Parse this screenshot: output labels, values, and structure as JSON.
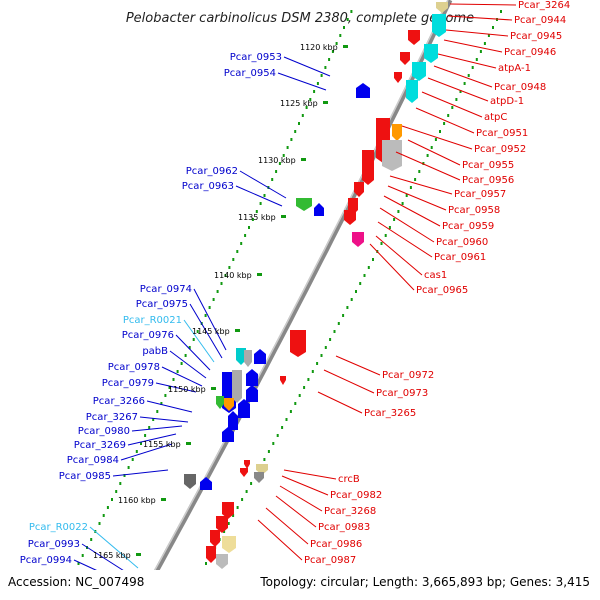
{
  "title": "Pelobacter carbinolicus DSM 2380, complete genome",
  "footer": {
    "accession": "Accession: NC_007498",
    "topology": "Topology: circular; Length: 3,665,893 bp; Genes: 3,415"
  },
  "colors": {
    "rightLabel": "#e00000",
    "leftLabel": "#0000cc",
    "rnaLabel": "#33bbee",
    "tick": "#119911",
    "backbone": "#888888"
  },
  "kbp_ticks": [
    "1120 kbp",
    "1125 kbp",
    "1130 kbp",
    "1135 kbp",
    "1140 kbp",
    "1145 kbp",
    "1150 kbp",
    "1155 kbp",
    "1160 kbp",
    "1165 kbp"
  ],
  "left_genes": [
    "Pcar_0953",
    "Pcar_0954",
    "Pcar_0962",
    "Pcar_0963",
    "Pcar_0974",
    "Pcar_0975",
    "Pcar_R0021",
    "Pcar_0976",
    "pabB",
    "Pcar_0978",
    "Pcar_0979",
    "Pcar_3266",
    "Pcar_3267",
    "Pcar_0980",
    "Pcar_3269",
    "Pcar_0984",
    "Pcar_0985",
    "Pcar_R0022",
    "Pcar_0993",
    "Pcar_0994"
  ],
  "right_genes": [
    "Pcar_3264",
    "Pcar_0944",
    "Pcar_0945",
    "Pcar_0946",
    "atpA-1",
    "Pcar_0948",
    "atpD-1",
    "atpC",
    "Pcar_0951",
    "Pcar_0952",
    "Pcar_0955",
    "Pcar_0956",
    "Pcar_0957",
    "Pcar_0958",
    "Pcar_0959",
    "Pcar_0960",
    "Pcar_0961",
    "cas1",
    "Pcar_0965",
    "Pcar_0972",
    "Pcar_0973",
    "Pcar_3265",
    "crcB",
    "Pcar_0982",
    "Pcar_3268",
    "Pcar_0983",
    "Pcar_0986",
    "Pcar_0987"
  ]
}
